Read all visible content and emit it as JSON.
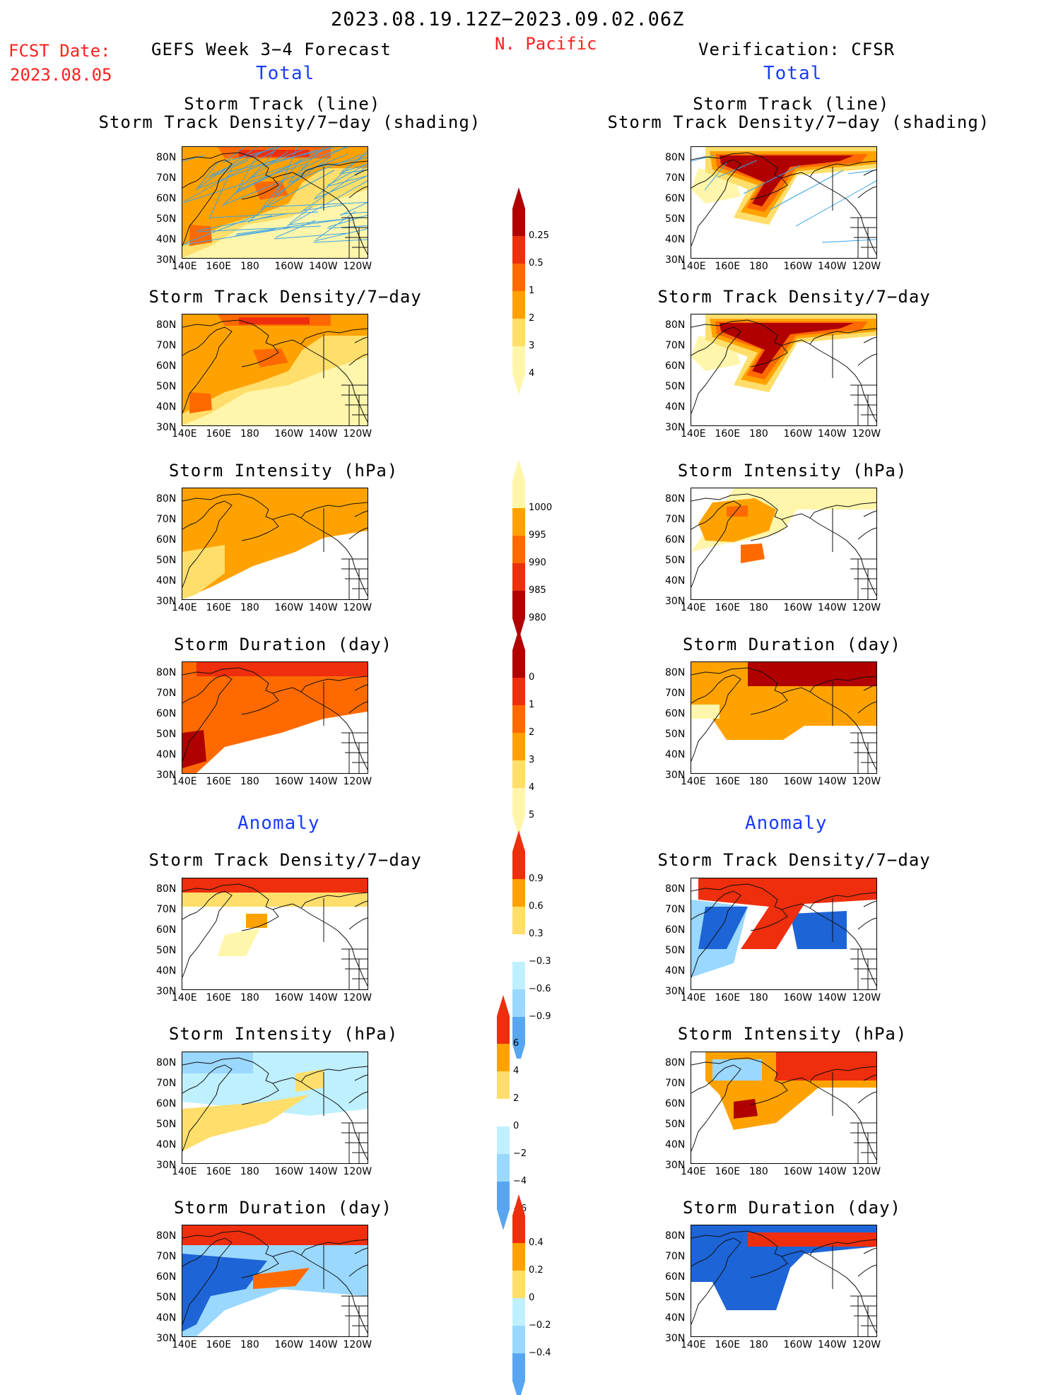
{
  "header": {
    "date_range": "2023.08.19.12Z−2023.09.02.06Z",
    "fcst_label": "FCST Date:",
    "fcst_date": "2023.08.05",
    "forecast_title": "GEFS Week 3−4 Forecast",
    "region": "N. Pacific",
    "verification": "Verification: CFSR"
  },
  "sections": {
    "total": "Total",
    "anomaly": "Anomaly"
  },
  "panel_titles": {
    "track_line": "Storm Track (line)",
    "track_shading": "Storm Track Density/7−day (shading)",
    "density": "Storm Track Density/7−day",
    "intensity": "Storm Intensity (hPa)",
    "duration": "Storm Duration (day)"
  },
  "axes": {
    "lat_ticks": [
      "80N",
      "70N",
      "60N",
      "50N",
      "40N",
      "30N"
    ],
    "lon_ticks": [
      "140E",
      "160E",
      "180",
      "160W",
      "140W",
      "120W"
    ]
  },
  "colors": {
    "pale_yellow": "#fff6ab",
    "yellow": "#ffde6b",
    "orange": "#ffa200",
    "dark_orange": "#ff6a00",
    "red": "#ee2e0c",
    "dark_red": "#b00000",
    "pale_blue": "#bff0ff",
    "light_blue": "#9ad8ff",
    "mid_blue": "#58a6f0",
    "blue": "#1d64d6",
    "track_line": "#3aa3e6"
  },
  "chart_data": [
    {
      "type": "heatmap",
      "name": "colorbar-density-total",
      "levels": [
        "0.25",
        "0.5",
        "1",
        "2",
        "3",
        "4"
      ]
    },
    {
      "type": "heatmap",
      "name": "colorbar-intensity-total",
      "levels": [
        "1000",
        "995",
        "990",
        "985",
        "980"
      ]
    },
    {
      "type": "heatmap",
      "name": "colorbar-duration-total",
      "levels": [
        "0",
        "1",
        "2",
        "3",
        "4",
        "5"
      ]
    },
    {
      "type": "heatmap",
      "name": "colorbar-density-anomaly",
      "levels": [
        "0.9",
        "0.6",
        "0.3",
        "−0.3",
        "−0.6",
        "−0.9"
      ]
    },
    {
      "type": "heatmap",
      "name": "colorbar-intensity-anomaly",
      "levels": [
        "6",
        "4",
        "2",
        "0",
        "−2",
        "−4",
        "−6"
      ]
    },
    {
      "type": "heatmap",
      "name": "colorbar-duration-anomaly",
      "levels": [
        "0.4",
        "0.2",
        "0",
        "−0.2",
        "−0.4"
      ]
    }
  ]
}
